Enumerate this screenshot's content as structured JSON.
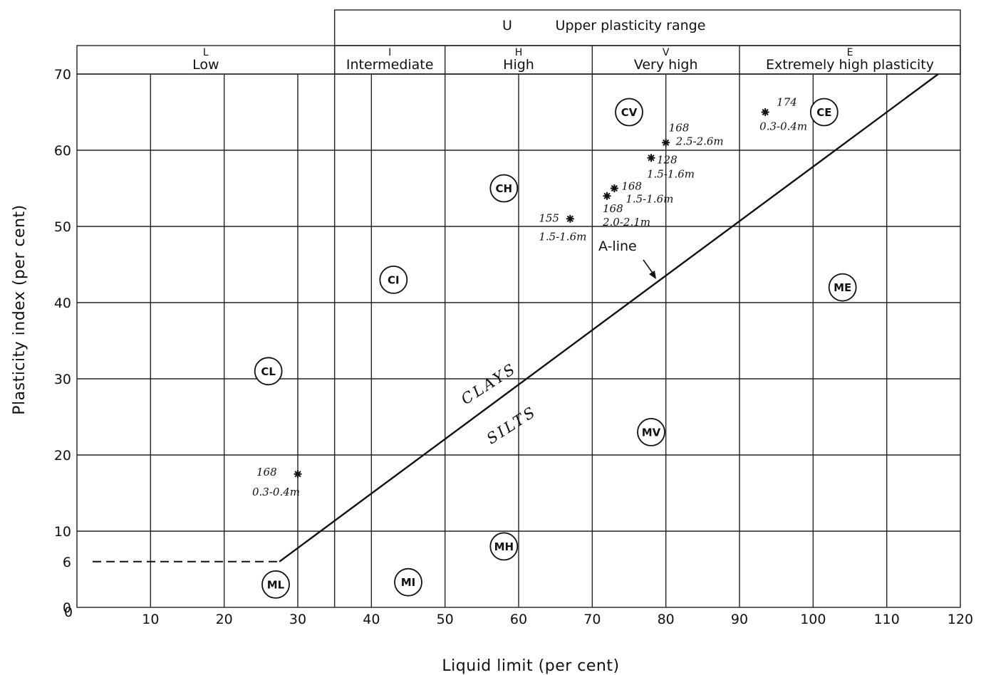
{
  "chart_data": {
    "type": "scatter",
    "title": "",
    "xlabel": "Liquid limit (per cent)",
    "ylabel": "Plasticity index (per cent)",
    "xlim": [
      0,
      120
    ],
    "ylim": [
      0,
      70
    ],
    "grid": true,
    "x_ticks": [
      "10",
      "20",
      "30",
      "40",
      "50",
      "60",
      "70",
      "80",
      "90",
      "100",
      "110",
      "120"
    ],
    "x_zero_label": "0",
    "y_ticks": [
      "0",
      "6",
      "10",
      "20",
      "30",
      "40",
      "50",
      "60",
      "70"
    ],
    "upper_range_label": "Upper plasticity range",
    "upper_range_letter": "U",
    "plasticity_bands": [
      {
        "letter": "L",
        "name": "Low",
        "from": 0,
        "to": 35
      },
      {
        "letter": "I",
        "name": "Intermediate",
        "from": 35,
        "to": 50
      },
      {
        "letter": "H",
        "name": "High",
        "from": 50,
        "to": 70
      },
      {
        "letter": "V",
        "name": "Very high",
        "from": 70,
        "to": 90
      },
      {
        "letter": "E",
        "name": "Extremely high plasticity",
        "from": 90,
        "to": 120
      }
    ],
    "zones": [
      {
        "label": "CL",
        "x": 26,
        "y": 31
      },
      {
        "label": "CI",
        "x": 43,
        "y": 43
      },
      {
        "label": "CH",
        "x": 58,
        "y": 55
      },
      {
        "label": "CV",
        "x": 75,
        "y": 65
      },
      {
        "label": "CE",
        "x": 101.5,
        "y": 65
      },
      {
        "label": "ME",
        "x": 104,
        "y": 42
      },
      {
        "label": "MV",
        "x": 78,
        "y": 23
      },
      {
        "label": "MH",
        "x": 58,
        "y": 8
      },
      {
        "label": "MI",
        "x": 45,
        "y": 3.3
      },
      {
        "label": "ML",
        "x": 27,
        "y": 3
      }
    ],
    "a_line": {
      "label": "A-line",
      "dashed_points": [
        [
          0,
          6
        ],
        [
          27.5,
          6
        ]
      ],
      "solid_points": [
        [
          27.5,
          6
        ],
        [
          117,
          70
        ]
      ]
    },
    "region_labels": {
      "above": "CLAYS",
      "below": "SILTS"
    },
    "samples": [
      {
        "id": "168",
        "depth": "0.3-0.4m",
        "x": 30,
        "y": 17.5
      },
      {
        "id": "155",
        "depth": "1.5-1.6m",
        "x": 67,
        "y": 51
      },
      {
        "id": "168",
        "depth": "2.0-2.1m",
        "x": 72,
        "y": 54
      },
      {
        "id": "168",
        "depth": "1.5-1.6m",
        "x": 73,
        "y": 55
      },
      {
        "id": "128",
        "depth": "1.5-1.6m",
        "x": 78,
        "y": 59
      },
      {
        "id": "168",
        "depth": "2.5-2.6m",
        "x": 80,
        "y": 61
      },
      {
        "id": "174",
        "depth": "0.3-0.4m",
        "x": 93.5,
        "y": 65
      }
    ]
  }
}
